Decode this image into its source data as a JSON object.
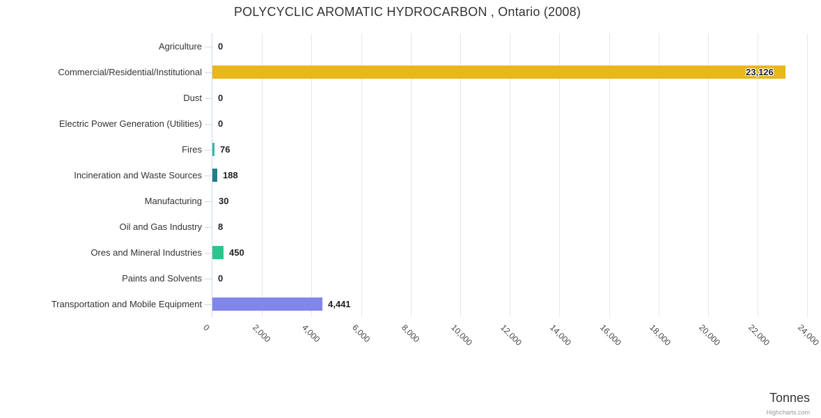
{
  "chart_data": {
    "type": "bar",
    "orientation": "horizontal",
    "title": "POLYCYCLIC AROMATIC HYDROCARBON , Ontario (2008)",
    "categories": [
      "Agriculture",
      "Commercial/Residential/Institutional",
      "Dust",
      "Electric Power Generation (Utilities)",
      "Fires",
      "Incineration and Waste Sources",
      "Manufacturing",
      "Oil and Gas Industry",
      "Ores and Mineral Industries",
      "Paints and Solvents",
      "Transportation and Mobile Equipment"
    ],
    "values": [
      0,
      23126,
      0,
      0,
      76,
      188,
      30,
      8,
      450,
      0,
      4441
    ],
    "value_labels": [
      "0",
      "23,126",
      "0",
      "0",
      "76",
      "188",
      "30",
      "8",
      "450",
      "0",
      "4,441"
    ],
    "bar_colors": [
      null,
      "#e9b71c",
      null,
      null,
      "#30bca4",
      "#237e88",
      null,
      null,
      "#2dc48e",
      null,
      "#8286e8"
    ],
    "xlim": [
      0,
      24000
    ],
    "tick_interval": 2000,
    "x_tick_labels": [
      "0",
      "2,000",
      "4,000",
      "6,000",
      "8,000",
      "10,000",
      "12,000",
      "14,000",
      "16,000",
      "18,000",
      "20,000",
      "22,000",
      "24,000"
    ],
    "xlabel": "Tonnes",
    "ylabel": "",
    "grid": "vertical gridlines on",
    "legend": "none",
    "credits": "Highcharts.com",
    "style_colors": {
      "gridline": "#e6e6e6",
      "axis_line": "#ccd6eb",
      "category_label": "#333333",
      "value_label": "#222222",
      "title": "#333333",
      "credits": "#999999"
    }
  }
}
